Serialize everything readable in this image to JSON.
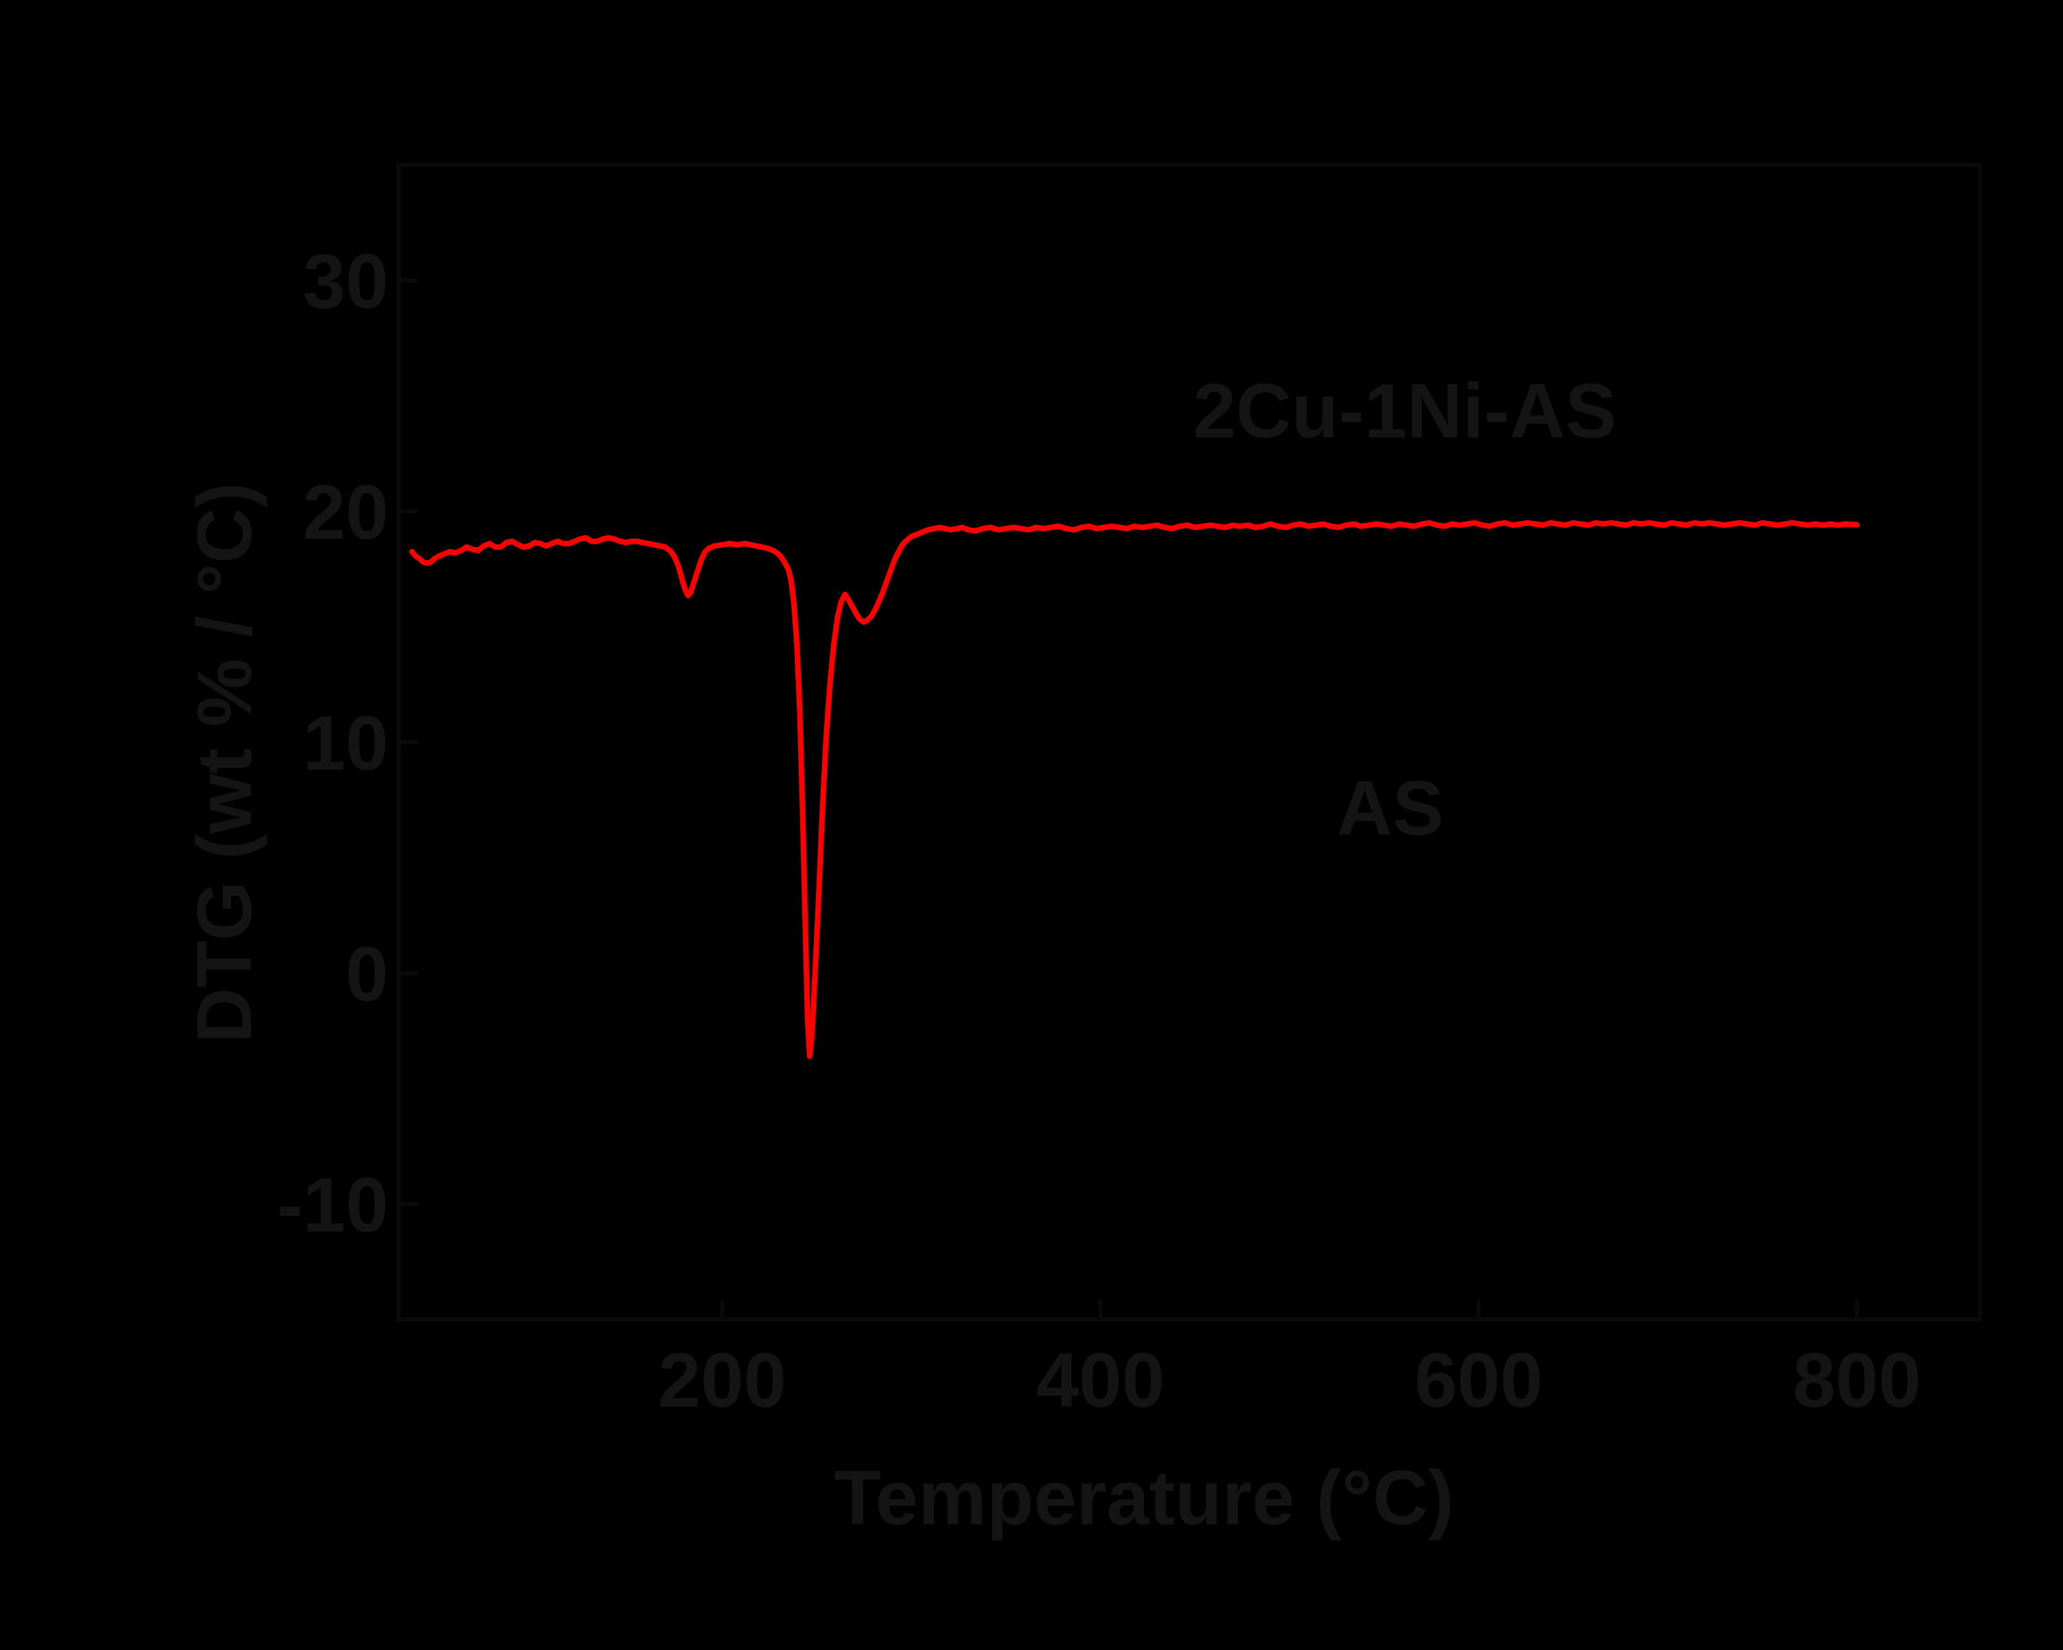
{
  "figure": {
    "background_color": "#000000",
    "text_color": "#141414",
    "axis_color": "#0a0a0a",
    "curve_color": "#ff0000"
  },
  "chart_data": {
    "type": "line",
    "title": "",
    "xlabel": "Temperature (°C)",
    "ylabel": "DTG (wt % / °C)",
    "grid": false,
    "legend_position": "none",
    "xlim": [
      29,
      865
    ],
    "ylim": [
      -15,
      35
    ],
    "x_ticks": [
      200,
      400,
      600,
      800
    ],
    "x_tick_labels": [
      "200",
      "400",
      "600",
      "800"
    ],
    "y_ticks": [
      30,
      20,
      10,
      0,
      -10
    ],
    "y_tick_labels": [
      "30",
      "20",
      "10",
      "0",
      "-10"
    ],
    "annotations": [
      {
        "id": "label-2cu-1ni-as",
        "text": "2Cu-1Ni-AS",
        "x_data": 449,
        "y_data": 23.2
      },
      {
        "id": "label-as",
        "text": "AS",
        "x_data": 525,
        "y_data": 6.0
      }
    ],
    "series": [
      {
        "name": "2Cu-1Ni-AS",
        "color": "#ff0000",
        "points": [
          [
            36,
            18.25
          ],
          [
            38,
            18.05
          ],
          [
            40,
            17.95
          ],
          [
            42,
            17.8
          ],
          [
            44,
            17.75
          ],
          [
            46,
            17.8
          ],
          [
            48,
            17.95
          ],
          [
            50,
            18.05
          ],
          [
            53,
            18.15
          ],
          [
            56,
            18.25
          ],
          [
            59,
            18.2
          ],
          [
            62,
            18.3
          ],
          [
            65,
            18.45
          ],
          [
            68,
            18.35
          ],
          [
            71,
            18.3
          ],
          [
            74,
            18.5
          ],
          [
            77,
            18.6
          ],
          [
            80,
            18.45
          ],
          [
            83,
            18.45
          ],
          [
            86,
            18.65
          ],
          [
            89,
            18.7
          ],
          [
            92,
            18.55
          ],
          [
            95,
            18.45
          ],
          [
            98,
            18.5
          ],
          [
            101,
            18.65
          ],
          [
            104,
            18.6
          ],
          [
            107,
            18.5
          ],
          [
            110,
            18.6
          ],
          [
            113,
            18.7
          ],
          [
            116,
            18.6
          ],
          [
            119,
            18.6
          ],
          [
            122,
            18.7
          ],
          [
            125,
            18.8
          ],
          [
            128,
            18.85
          ],
          [
            131,
            18.7
          ],
          [
            134,
            18.7
          ],
          [
            137,
            18.8
          ],
          [
            140,
            18.85
          ],
          [
            143,
            18.8
          ],
          [
            146,
            18.7
          ],
          [
            149,
            18.65
          ],
          [
            152,
            18.7
          ],
          [
            155,
            18.7
          ],
          [
            158,
            18.65
          ],
          [
            161,
            18.6
          ],
          [
            164,
            18.55
          ],
          [
            167,
            18.5
          ],
          [
            170,
            18.45
          ],
          [
            173,
            18.25
          ],
          [
            175,
            18.0
          ],
          [
            177,
            17.6
          ],
          [
            179,
            17.0
          ],
          [
            180.5,
            16.6
          ],
          [
            182,
            16.35
          ],
          [
            183.5,
            16.5
          ],
          [
            185,
            16.9
          ],
          [
            187,
            17.4
          ],
          [
            189,
            17.9
          ],
          [
            191,
            18.25
          ],
          [
            193,
            18.4
          ],
          [
            196,
            18.5
          ],
          [
            200,
            18.55
          ],
          [
            204,
            18.6
          ],
          [
            208,
            18.55
          ],
          [
            212,
            18.6
          ],
          [
            215,
            18.55
          ],
          [
            218,
            18.5
          ],
          [
            221,
            18.45
          ],
          [
            224,
            18.4
          ],
          [
            227,
            18.3
          ],
          [
            229,
            18.2
          ],
          [
            231,
            18.05
          ],
          [
            233,
            17.8
          ],
          [
            235,
            17.5
          ],
          [
            236.5,
            17.0
          ],
          [
            238,
            16.0
          ],
          [
            239.5,
            14.3
          ],
          [
            241,
            11.5
          ],
          [
            242.5,
            7.2
          ],
          [
            244,
            2.0
          ],
          [
            245.2,
            -2.0
          ],
          [
            246.3,
            -3.6
          ],
          [
            247.2,
            -3.0
          ],
          [
            248.2,
            -1.6
          ],
          [
            249.5,
            0.6
          ],
          [
            251,
            3.2
          ],
          [
            253,
            7.0
          ],
          [
            255,
            10.2
          ],
          [
            257,
            12.5
          ],
          [
            259,
            14.2
          ],
          [
            261,
            15.4
          ],
          [
            263,
            16.1
          ],
          [
            265,
            16.4
          ],
          [
            267,
            16.15
          ],
          [
            269,
            15.85
          ],
          [
            271,
            15.55
          ],
          [
            273,
            15.3
          ],
          [
            275,
            15.2
          ],
          [
            277,
            15.3
          ],
          [
            279,
            15.45
          ],
          [
            281,
            15.75
          ],
          [
            283,
            16.1
          ],
          [
            285,
            16.5
          ],
          [
            287,
            16.95
          ],
          [
            289,
            17.4
          ],
          [
            291,
            17.85
          ],
          [
            293,
            18.2
          ],
          [
            295,
            18.5
          ],
          [
            297,
            18.7
          ],
          [
            300,
            18.9
          ],
          [
            303,
            19.0
          ],
          [
            306,
            19.1
          ],
          [
            309,
            19.2
          ],
          [
            312,
            19.25
          ],
          [
            315,
            19.3
          ],
          [
            318,
            19.25
          ],
          [
            321,
            19.2
          ],
          [
            324,
            19.25
          ],
          [
            327,
            19.3
          ],
          [
            330,
            19.2
          ],
          [
            334,
            19.15
          ],
          [
            338,
            19.25
          ],
          [
            342,
            19.3
          ],
          [
            346,
            19.2
          ],
          [
            350,
            19.25
          ],
          [
            354,
            19.3
          ],
          [
            358,
            19.25
          ],
          [
            362,
            19.2
          ],
          [
            366,
            19.3
          ],
          [
            370,
            19.25
          ],
          [
            374,
            19.3
          ],
          [
            378,
            19.35
          ],
          [
            382,
            19.25
          ],
          [
            386,
            19.2
          ],
          [
            390,
            19.3
          ],
          [
            394,
            19.35
          ],
          [
            398,
            19.25
          ],
          [
            402,
            19.3
          ],
          [
            406,
            19.35
          ],
          [
            410,
            19.3
          ],
          [
            414,
            19.25
          ],
          [
            418,
            19.35
          ],
          [
            422,
            19.3
          ],
          [
            426,
            19.35
          ],
          [
            430,
            19.4
          ],
          [
            434,
            19.3
          ],
          [
            438,
            19.25
          ],
          [
            442,
            19.35
          ],
          [
            446,
            19.4
          ],
          [
            450,
            19.3
          ],
          [
            454,
            19.35
          ],
          [
            458,
            19.4
          ],
          [
            462,
            19.35
          ],
          [
            466,
            19.3
          ],
          [
            470,
            19.4
          ],
          [
            474,
            19.35
          ],
          [
            478,
            19.4
          ],
          [
            482,
            19.3
          ],
          [
            486,
            19.35
          ],
          [
            490,
            19.45
          ],
          [
            494,
            19.35
          ],
          [
            498,
            19.3
          ],
          [
            502,
            19.4
          ],
          [
            506,
            19.45
          ],
          [
            510,
            19.35
          ],
          [
            514,
            19.4
          ],
          [
            518,
            19.45
          ],
          [
            522,
            19.35
          ],
          [
            526,
            19.3
          ],
          [
            530,
            19.4
          ],
          [
            534,
            19.45
          ],
          [
            538,
            19.35
          ],
          [
            542,
            19.4
          ],
          [
            546,
            19.45
          ],
          [
            550,
            19.4
          ],
          [
            554,
            19.35
          ],
          [
            558,
            19.45
          ],
          [
            562,
            19.4
          ],
          [
            566,
            19.35
          ],
          [
            570,
            19.45
          ],
          [
            574,
            19.5
          ],
          [
            578,
            19.4
          ],
          [
            582,
            19.35
          ],
          [
            586,
            19.45
          ],
          [
            590,
            19.4
          ],
          [
            594,
            19.45
          ],
          [
            598,
            19.5
          ],
          [
            602,
            19.4
          ],
          [
            606,
            19.35
          ],
          [
            610,
            19.45
          ],
          [
            614,
            19.5
          ],
          [
            618,
            19.4
          ],
          [
            622,
            19.45
          ],
          [
            626,
            19.5
          ],
          [
            630,
            19.45
          ],
          [
            634,
            19.4
          ],
          [
            638,
            19.5
          ],
          [
            642,
            19.45
          ],
          [
            646,
            19.4
          ],
          [
            650,
            19.5
          ],
          [
            654,
            19.45
          ],
          [
            658,
            19.4
          ],
          [
            662,
            19.5
          ],
          [
            666,
            19.45
          ],
          [
            670,
            19.5
          ],
          [
            674,
            19.45
          ],
          [
            678,
            19.4
          ],
          [
            682,
            19.5
          ],
          [
            686,
            19.45
          ],
          [
            690,
            19.5
          ],
          [
            694,
            19.45
          ],
          [
            698,
            19.4
          ],
          [
            702,
            19.5
          ],
          [
            706,
            19.45
          ],
          [
            710,
            19.4
          ],
          [
            714,
            19.5
          ],
          [
            718,
            19.45
          ],
          [
            722,
            19.5
          ],
          [
            726,
            19.45
          ],
          [
            730,
            19.4
          ],
          [
            734,
            19.45
          ],
          [
            738,
            19.5
          ],
          [
            742,
            19.45
          ],
          [
            746,
            19.4
          ],
          [
            750,
            19.5
          ],
          [
            754,
            19.45
          ],
          [
            758,
            19.4
          ],
          [
            762,
            19.45
          ],
          [
            766,
            19.5
          ],
          [
            770,
            19.45
          ],
          [
            774,
            19.4
          ],
          [
            778,
            19.45
          ],
          [
            782,
            19.4
          ],
          [
            786,
            19.45
          ],
          [
            790,
            19.4
          ],
          [
            794,
            19.45
          ],
          [
            800,
            19.42
          ]
        ]
      }
    ]
  }
}
